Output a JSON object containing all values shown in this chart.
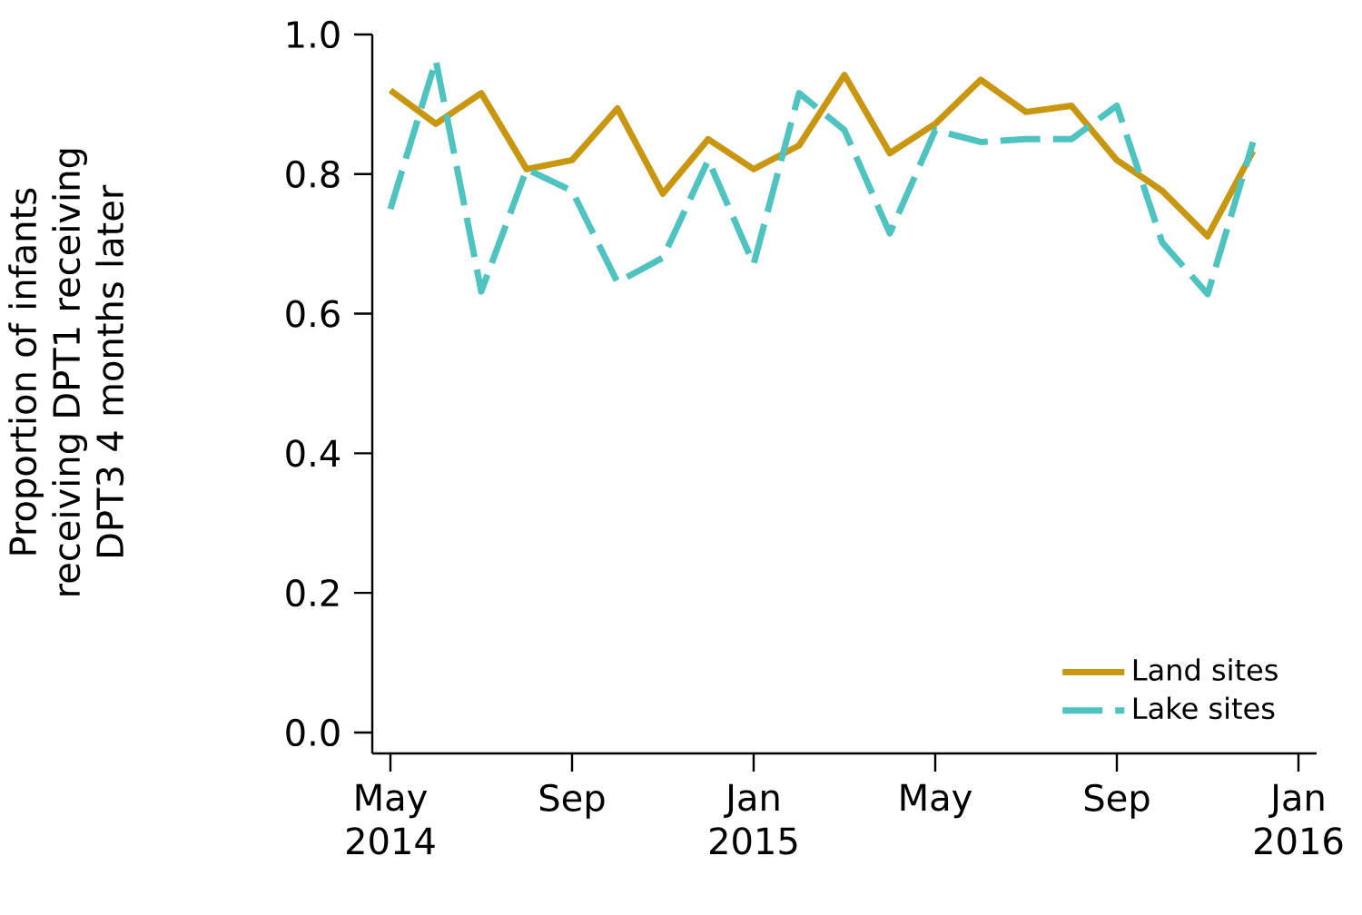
{
  "chart_data": {
    "type": "line",
    "ylabel": "Proportion of infants receiving DPT1 receiving DPT3 4 months later",
    "x": [
      "2014-05",
      "2014-06",
      "2014-07",
      "2014-08",
      "2014-09",
      "2014-10",
      "2014-11",
      "2014-12",
      "2015-01",
      "2015-02",
      "2015-03",
      "2015-04",
      "2015-05",
      "2015-06",
      "2015-07",
      "2015-08",
      "2015-09",
      "2015-10",
      "2015-11",
      "2015-12"
    ],
    "series": [
      {
        "name": "Land sites",
        "color": "#c8960f",
        "line_style": "solid",
        "values": [
          0.92,
          0.872,
          0.916,
          0.807,
          0.82,
          0.894,
          0.772,
          0.85,
          0.807,
          0.841,
          0.942,
          0.83,
          0.872,
          0.935,
          0.889,
          0.898,
          0.82,
          0.776,
          0.711,
          0.833
        ]
      },
      {
        "name": "Lake sites",
        "color": "#4fc3c0",
        "line_style": "dashed",
        "values": [
          0.75,
          0.963,
          0.632,
          0.807,
          0.776,
          0.645,
          0.68,
          0.82,
          0.671,
          0.916,
          0.863,
          0.715,
          0.863,
          0.846,
          0.85,
          0.85,
          0.898,
          0.702,
          0.628,
          0.846
        ]
      }
    ],
    "xlim": [
      "2014-04-19",
      "2016-01-13"
    ],
    "xticks": [
      {
        "value": "2014-05",
        "label": "May 2014"
      },
      {
        "value": "2014-09",
        "label": "Sep"
      },
      {
        "value": "2015-01",
        "label": "Jan 2015"
      },
      {
        "value": "2015-05",
        "label": "May"
      },
      {
        "value": "2015-09",
        "label": "Sep"
      },
      {
        "value": "2016-01",
        "label": "Jan 2016"
      }
    ],
    "ylim": [
      -0.03,
      1.0
    ],
    "yticks": [
      {
        "value": 0,
        "label": "0.0"
      },
      0.2,
      0.4,
      0.6,
      0.8,
      {
        "value": 1,
        "label": "1.0"
      }
    ],
    "grid": false,
    "legend": "bottom right",
    "marker": "none"
  }
}
